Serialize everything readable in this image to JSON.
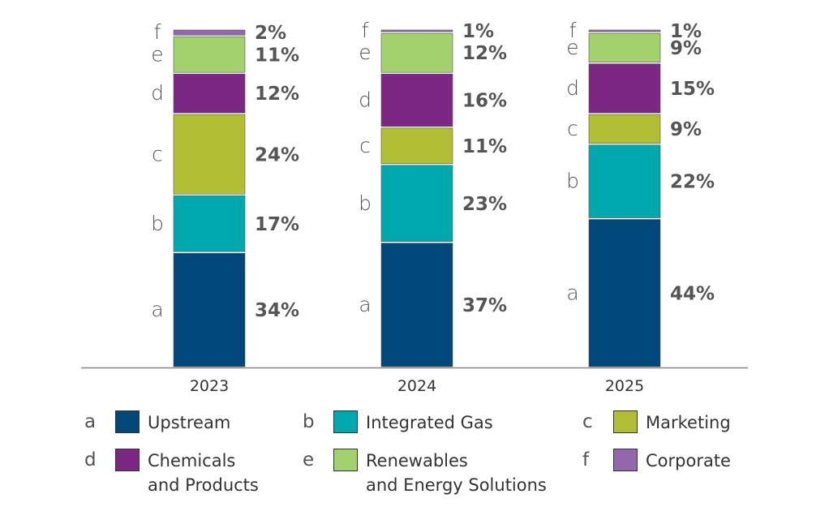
{
  "chart_data": {
    "type": "bar",
    "stacked": true,
    "normalized_percent": true,
    "categories": [
      "2023",
      "2024",
      "2025"
    ],
    "series": [
      {
        "key": "a",
        "name": "Upstream",
        "color": "#00477a",
        "values": [
          34,
          37,
          44
        ]
      },
      {
        "key": "b",
        "name": "Integrated Gas",
        "color": "#00a9ae",
        "values": [
          17,
          23,
          22
        ]
      },
      {
        "key": "c",
        "name": "Marketing",
        "color": "#b0bf34",
        "values": [
          24,
          11,
          9
        ]
      },
      {
        "key": "d",
        "name": "Chemicals\nand Products",
        "color": "#7d2784",
        "values": [
          12,
          16,
          15
        ]
      },
      {
        "key": "e",
        "name": "Renewables\nand Energy Solutions",
        "color": "#a3d16e",
        "values": [
          11,
          12,
          9
        ]
      },
      {
        "key": "f",
        "name": "Corporate",
        "color": "#9268ad",
        "values": [
          2,
          1,
          1
        ]
      }
    ],
    "value_suffix": "%",
    "title": "",
    "xlabel": "",
    "ylabel": ""
  }
}
